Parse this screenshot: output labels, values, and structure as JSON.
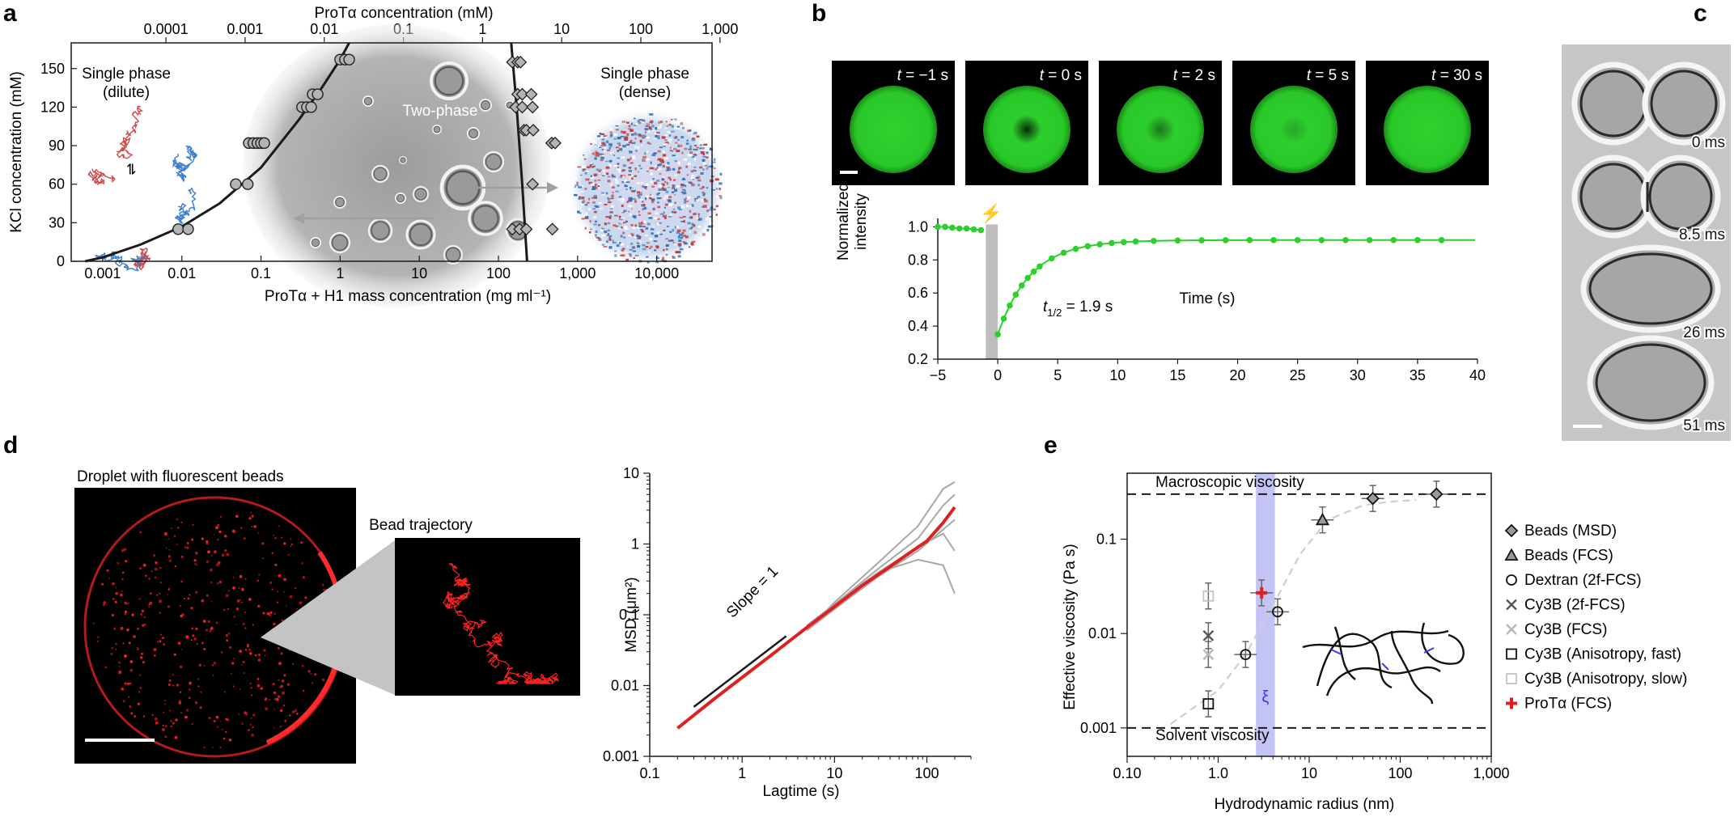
{
  "colors": {
    "green": "#2bd02b",
    "red": "#e0201e",
    "blue": "#3a78c8",
    "band": "#b9b9f5",
    "grey": "#8a8a8a",
    "black": "#1a1a1a",
    "micro_bg": "#c8c8c8"
  },
  "panels": {
    "a": {
      "letter": "a",
      "top_axis_title": "ProTα concentration (mM)",
      "top_ticks": [
        "0.0001",
        "0.001",
        "0.01",
        "0.1",
        "1",
        "10",
        "100",
        "1,000"
      ],
      "bottom_axis_title": "ProTα + H1 mass concentration (mg ml⁻¹)",
      "bottom_ticks": [
        "0.001",
        "0.01",
        "0.1",
        "1",
        "10",
        "100",
        "1,000",
        "10,000"
      ],
      "y_axis_title": "KCl concentration (mM)",
      "y_ticks": [
        "0",
        "30",
        "60",
        "90",
        "120",
        "150"
      ],
      "label_single_dilute_1": "Single phase",
      "label_single_dilute_2": "(dilute)",
      "label_two_phase": "Two-phase",
      "label_single_dense_1": "Single phase",
      "label_single_dense_2": "(dense)",
      "equilibrium_symbol": "⇌"
    },
    "b": {
      "letter": "b",
      "frames": [
        {
          "t": "t",
          "rest": " = −1 s"
        },
        {
          "t": "t",
          "rest": " = 0 s"
        },
        {
          "t": "t",
          "rest": " = 2 s"
        },
        {
          "t": "t",
          "rest": " = 5 s"
        },
        {
          "t": "t",
          "rest": " = 30 s"
        }
      ],
      "y_axis_title_1": "Normalized",
      "y_axis_title_2": "intensity",
      "x_axis_title": "Time (s)",
      "half_time_t": "t",
      "half_time_sub": "1/2",
      "half_time_rest": " = 1.9 s",
      "flash_symbol": "⚡"
    },
    "c": {
      "letter": "c",
      "times": [
        "0 ms",
        "8.5 ms",
        "26 ms",
        "51 ms"
      ]
    },
    "d": {
      "letter": "d",
      "droplet_title": "Droplet with fluorescent beads",
      "trajectory_title": "Bead trajectory",
      "slope_label": "Slope = 1",
      "y_axis_title": "MSD (μm²)",
      "x_axis_title": "Lagtime (s)"
    },
    "e": {
      "letter": "e",
      "macro_label": "Macroscopic viscosity",
      "solvent_label": "Solvent viscosity",
      "xi_label": "ξ",
      "y_axis_title": "Effective viscosity (Pa s)",
      "x_axis_title": "Hydrodynamic radius (nm)",
      "legend": [
        {
          "marker": "diamond",
          "label": "Beads (MSD)"
        },
        {
          "marker": "triangle",
          "label": "Beads (FCS)"
        },
        {
          "marker": "circle",
          "label": "Dextran (2f-FCS)"
        },
        {
          "marker": "x-dark",
          "label": "Cy3B (2f-FCS)"
        },
        {
          "marker": "x-light",
          "label": "Cy3B (FCS)"
        },
        {
          "marker": "square",
          "label": "Cy3B (Anisotropy, fast)"
        },
        {
          "marker": "square-light",
          "label": "Cy3B (Anisotropy, slow)"
        },
        {
          "marker": "plus-red",
          "label": "ProTα (FCS)"
        }
      ]
    }
  },
  "chart_data": [
    {
      "id": "a",
      "type": "scatter",
      "xscale": "log",
      "xlabel": "ProTα + H1 mass concentration (mg ml⁻¹)",
      "ylabel": "KCl concentration (mM)",
      "x2label": "ProTα concentration (mM)",
      "xlim": [
        0.0004,
        50000
      ],
      "ylim": [
        0,
        170
      ],
      "x_ticks": [
        0.001,
        0.01,
        0.1,
        1,
        10,
        100,
        1000,
        10000
      ],
      "y_ticks": [
        0,
        30,
        60,
        90,
        120,
        150
      ],
      "dilute_points": [
        [
          0.009,
          25
        ],
        [
          0.012,
          25
        ],
        [
          0.048,
          60
        ],
        [
          0.068,
          60
        ],
        [
          0.07,
          92
        ],
        [
          0.08,
          92
        ],
        [
          0.09,
          92
        ],
        [
          0.1,
          92
        ],
        [
          0.11,
          92
        ],
        [
          0.33,
          120
        ],
        [
          0.38,
          120
        ],
        [
          0.43,
          120
        ],
        [
          0.45,
          130
        ],
        [
          0.52,
          130
        ],
        [
          1.0,
          157
        ],
        [
          1.15,
          157
        ],
        [
          1.3,
          157
        ]
      ],
      "dense_points": [
        [
          150,
          155
        ],
        [
          175,
          155
        ],
        [
          190,
          155
        ],
        [
          175,
          130
        ],
        [
          200,
          130
        ],
        [
          260,
          130
        ],
        [
          165,
          120
        ],
        [
          200,
          120
        ],
        [
          270,
          120
        ],
        [
          210,
          102
        ],
        [
          225,
          102
        ],
        [
          275,
          102
        ],
        [
          470,
          92
        ],
        [
          520,
          92
        ],
        [
          270,
          60
        ],
        [
          150,
          25
        ],
        [
          185,
          25
        ],
        [
          225,
          25
        ],
        [
          480,
          25
        ]
      ],
      "dilute_boundary": [
        [
          0.0006,
          0
        ],
        [
          0.001,
          3
        ],
        [
          0.003,
          13
        ],
        [
          0.01,
          27
        ],
        [
          0.03,
          45
        ],
        [
          0.1,
          73
        ],
        [
          0.3,
          110
        ],
        [
          0.6,
          136
        ],
        [
          1.0,
          157
        ],
        [
          1.3,
          170
        ]
      ],
      "dense_boundary": [
        [
          230,
          0
        ],
        [
          200,
          60
        ],
        [
          170,
          120
        ],
        [
          145,
          170
        ]
      ]
    },
    {
      "id": "b",
      "type": "line",
      "xlabel": "Time (s)",
      "ylabel": "Normalized intensity",
      "xlim": [
        -5,
        40
      ],
      "ylim": [
        0.2,
        1.1
      ],
      "x_ticks": [
        -5,
        0,
        5,
        10,
        15,
        20,
        25,
        30,
        35,
        40
      ],
      "y_ticks": [
        0.2,
        0.4,
        0.6,
        0.8,
        1.0
      ],
      "bleach_band": [
        -1,
        0
      ],
      "pre_bleach_points": [
        [
          -5,
          1.0
        ],
        [
          -4.4,
          1.0
        ],
        [
          -3.8,
          0.995
        ],
        [
          -3.2,
          0.99
        ],
        [
          -2.6,
          0.99
        ],
        [
          -2.0,
          0.985
        ],
        [
          -1.4,
          0.98
        ]
      ],
      "recovery_model": {
        "y0": 0.35,
        "plateau": 0.92,
        "half_time": 1.9
      }
    },
    {
      "id": "d",
      "type": "line",
      "xscale": "log",
      "yscale": "log",
      "xlabel": "Lagtime (s)",
      "ylabel": "MSD (μm²)",
      "xlim": [
        0.1,
        300
      ],
      "ylim": [
        0.001,
        10
      ],
      "x_ticks": [
        0.1,
        1,
        10,
        100
      ],
      "y_ticks": [
        0.001,
        0.01,
        0.1,
        1,
        10
      ],
      "mean_series": [
        [
          0.2,
          0.0025
        ],
        [
          0.5,
          0.0065
        ],
        [
          1,
          0.013
        ],
        [
          2,
          0.026
        ],
        [
          5,
          0.066
        ],
        [
          10,
          0.13
        ],
        [
          20,
          0.26
        ],
        [
          40,
          0.48
        ],
        [
          60,
          0.7
        ],
        [
          100,
          1.1
        ],
        [
          150,
          2.0
        ],
        [
          200,
          3.3
        ]
      ],
      "individual_series": [
        [
          [
            5,
            0.06
          ],
          [
            10,
            0.15
          ],
          [
            30,
            0.55
          ],
          [
            80,
            1.8
          ],
          [
            150,
            6.0
          ],
          [
            200,
            7.5
          ]
        ],
        [
          [
            5,
            0.07
          ],
          [
            10,
            0.14
          ],
          [
            30,
            0.45
          ],
          [
            80,
            1.2
          ],
          [
            150,
            3.5
          ],
          [
            200,
            5.0
          ]
        ],
        [
          [
            5,
            0.06
          ],
          [
            10,
            0.12
          ],
          [
            30,
            0.35
          ],
          [
            80,
            0.8
          ],
          [
            150,
            1.6
          ],
          [
            200,
            2.2
          ]
        ],
        [
          [
            5,
            0.065
          ],
          [
            10,
            0.13
          ],
          [
            30,
            0.4
          ],
          [
            80,
            0.6
          ],
          [
            150,
            0.5
          ],
          [
            200,
            0.2
          ]
        ],
        [
          [
            5,
            0.07
          ],
          [
            10,
            0.14
          ],
          [
            30,
            0.4
          ],
          [
            80,
            0.9
          ],
          [
            150,
            1.4
          ],
          [
            200,
            0.8
          ]
        ]
      ]
    },
    {
      "id": "e",
      "type": "scatter",
      "xscale": "log",
      "yscale": "log",
      "xlabel": "Hydrodynamic radius (nm)",
      "ylabel": "Effective viscosity (Pa s)",
      "xlim": [
        0.1,
        1000
      ],
      "ylim": [
        0.0005,
        0.5
      ],
      "x_ticks": [
        0.1,
        1,
        10,
        100,
        1000
      ],
      "x_tick_labels": [
        "0.10",
        "1.0",
        "10",
        "100",
        "1,000"
      ],
      "y_ticks": [
        0.001,
        0.01,
        0.1
      ],
      "macroscopic_viscosity": 0.3,
      "solvent_viscosity": 0.001,
      "xi_band": [
        2.6,
        4.2
      ],
      "points": [
        {
          "series": "Beads (MSD)",
          "x": 50,
          "y": 0.27
        },
        {
          "series": "Beads (MSD)",
          "x": 250,
          "y": 0.3
        },
        {
          "series": "Beads (FCS)",
          "x": 14,
          "y": 0.16
        },
        {
          "series": "Dextran (2f-FCS)",
          "x": 2.0,
          "y": 0.006
        },
        {
          "series": "Dextran (2f-FCS)",
          "x": 4.5,
          "y": 0.017
        },
        {
          "series": "Cy3B (2f-FCS)",
          "x": 0.78,
          "y": 0.0095
        },
        {
          "series": "Cy3B (FCS)",
          "x": 0.78,
          "y": 0.006
        },
        {
          "series": "Cy3B (Anisotropy, fast)",
          "x": 0.78,
          "y": 0.0018
        },
        {
          "series": "Cy3B (Anisotropy, slow)",
          "x": 0.78,
          "y": 0.025
        },
        {
          "series": "ProTα (FCS)",
          "x": 3.0,
          "y": 0.027
        }
      ],
      "sigmoid_fit": [
        [
          0.3,
          0.0011
        ],
        [
          1,
          0.0025
        ],
        [
          2,
          0.006
        ],
        [
          4,
          0.02
        ],
        [
          8,
          0.07
        ],
        [
          16,
          0.16
        ],
        [
          40,
          0.23
        ],
        [
          80,
          0.25
        ]
      ]
    }
  ]
}
